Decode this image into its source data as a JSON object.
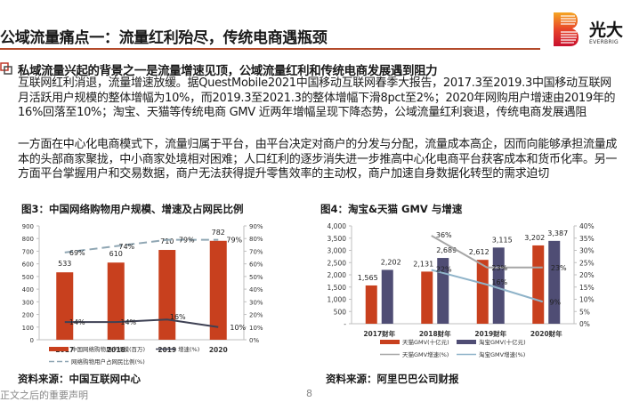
{
  "header": {
    "title": "公域流量痛点一：流量红利殆尽，传统电商遇瓶颈",
    "logo_cn": "光大",
    "logo_en": "EVERBRIG"
  },
  "body": {
    "heading": "私域流量兴起的背景之一是流量增速见顶，公域流量红利和传统电商发展遇到阻力",
    "para1": "互联网红利消退，流量增速放缓。据QuestMobile2021中国移动互联网春季大报告，2017.3至2019.3中国移动互联网月活跃用户规模的整体增幅为10%，而2019.3至2021.3的整体增幅下滑8pct至2%；2020年网购用户增速由2019年的16%回落至10%；淘宝、天猫等传统电商 GMV 近两年增幅呈现下降态势，公域流量红利衰退，传统电商发展遇阻",
    "para2": "一方面在中心化电商模式下，流量归属于平台，由平台决定对商户的分发与分配，流量成本高企，因而向能够承担流量成本的头部商家聚拢，中小商家处境相对困难；人口红利的逐步消失进一步推高中心化电商平台获客成本和货币化率。另一方面平台掌握用户和交易数据，商户无法获得提升零售效率的主动权，商户加速自身数据化转型的需求迫切"
  },
  "figures": {
    "fig3_title": "图3：中国网络购物用户规模、增速及占网民比例",
    "fig3_source": "资料来源：中国互联网中心",
    "fig4_title": "图4：淘宝&天猫 GMV 与增速",
    "fig4_source": "资料来源：阿里巴巴公司财报"
  },
  "footer": {
    "note": "正文之后的重要声明",
    "page": "8"
  },
  "colors": {
    "accent": "#b34a2a",
    "bar_red": "#c8401e",
    "bar_navy": "#4f4d74",
    "line_dark": "#3e4154",
    "line_dash": "#8fa6b3",
    "line_gray": "#a6a6a6",
    "line_blue": "#8fb3c9"
  },
  "chart_data": [
    {
      "type": "bar",
      "title": "图3：中国网络购物用户规模、增速及占网民比例",
      "categories": [
        "2017",
        "2018",
        "2019",
        "2020"
      ],
      "ylim": [
        0,
        900
      ],
      "y_ticks": [
        "0",
        "100",
        "200",
        "300",
        "400",
        "500",
        "600",
        "700",
        "800",
        "900"
      ],
      "y2lim": [
        0,
        90
      ],
      "y2_ticks": [
        "0%",
        "10%",
        "20%",
        "30%",
        "40%",
        "50%",
        "60%",
        "70%",
        "80%",
        "90%"
      ],
      "series": [
        {
          "name": "中国网络购物用户规模(百万)",
          "kind": "bar",
          "axis": "left",
          "values": [
            533,
            610,
            710,
            782
          ],
          "labels": [
            "533",
            "610",
            "710",
            "782"
          ]
        },
        {
          "name": "增速(%)",
          "kind": "line",
          "axis": "right",
          "values": [
            14,
            14,
            16,
            10
          ],
          "labels": [
            "14%",
            "14%",
            "16%",
            "10%"
          ]
        },
        {
          "name": "网络购物用户占网民比例(%)",
          "kind": "dashed-line",
          "axis": "right",
          "values": [
            69,
            74,
            79,
            79
          ],
          "labels": [
            "69%",
            "74%",
            "79%",
            "79%"
          ]
        }
      ],
      "legend": [
        "中国网络购物用户规模(百万)",
        "增速(%)",
        "网络购物用户占网民比例(%)"
      ],
      "legend_position": "bottom",
      "grid": false
    },
    {
      "type": "bar",
      "title": "图4：淘宝&天猫 GMV 与增速",
      "categories": [
        "2017财年",
        "2018财年",
        "2019财年",
        "2020财年"
      ],
      "ylim": [
        0,
        4000
      ],
      "y_ticks": [
        "-",
        "500",
        "1,000",
        "1,500",
        "2,000",
        "2,500",
        "3,000",
        "3,500",
        "4,000"
      ],
      "y2lim": [
        0,
        40
      ],
      "y2_ticks": [
        "0%",
        "5%",
        "10%",
        "15%",
        "20%",
        "25%",
        "30%",
        "35%",
        "40%"
      ],
      "series": [
        {
          "name": "天猫GMV(十亿元)",
          "kind": "bar",
          "axis": "left",
          "values": [
            1565,
            2131,
            2612,
            3202
          ],
          "labels": [
            "1,565",
            "2,131",
            "2,612",
            "3,202"
          ]
        },
        {
          "name": "淘宝GMV(十亿元)",
          "kind": "bar",
          "axis": "left",
          "values": [
            2202,
            2689,
            3115,
            3387
          ],
          "labels": [
            "2,202",
            "2,689",
            "3,115",
            "3,387"
          ]
        },
        {
          "name": "天猫GMV增速(%)",
          "kind": "line",
          "axis": "right",
          "values": [
            null,
            36,
            23,
            23
          ],
          "labels": [
            "",
            "36%",
            "23%",
            "23%"
          ]
        },
        {
          "name": "淘宝GMV增速(%)",
          "kind": "line",
          "axis": "right",
          "values": [
            null,
            22,
            16,
            9
          ],
          "labels": [
            "",
            "22%",
            "16%",
            "9%"
          ]
        }
      ],
      "legend": [
        "天猫GMV(十亿元)",
        "淘宝GMV(十亿元)",
        "天猫GMV增速(%)",
        "淘宝GMV增速(%)"
      ],
      "legend_position": "bottom",
      "grid": false
    }
  ]
}
